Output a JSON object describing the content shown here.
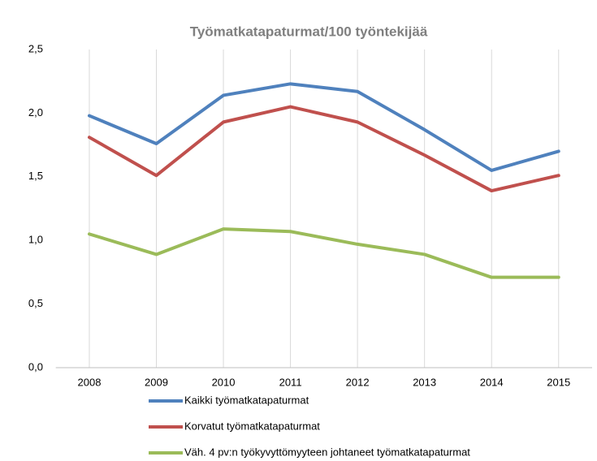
{
  "chart_data": {
    "type": "line",
    "title": "Työmatkatapaturmat/100  työntekijää",
    "categories": [
      "2008",
      "2009",
      "2010",
      "2011",
      "2012",
      "2013",
      "2014",
      "2015"
    ],
    "series": [
      {
        "name": "Kaikki työmatkatapaturmat",
        "color": "#4f81bd",
        "values": [
          1.98,
          1.76,
          2.14,
          2.23,
          2.17,
          1.87,
          1.55,
          1.7
        ]
      },
      {
        "name": "Korvatut työmatkatapaturmat",
        "color": "#c0504d",
        "values": [
          1.81,
          1.51,
          1.93,
          2.05,
          1.93,
          1.67,
          1.39,
          1.51
        ]
      },
      {
        "name": "Väh. 4 pv:n työkyvyttömyyteen johtaneet työmatkatapaturmat",
        "color": "#9bbb59",
        "values": [
          1.05,
          0.89,
          1.09,
          1.07,
          0.97,
          0.89,
          0.71,
          0.71
        ]
      }
    ],
    "ylim": [
      0,
      2.5
    ],
    "yticks": [
      {
        "value": 0,
        "label": "0,0"
      },
      {
        "value": 0.5,
        "label": "0,5"
      },
      {
        "value": 1,
        "label": "1,0"
      },
      {
        "value": 1.5,
        "label": "1,5"
      },
      {
        "value": 2,
        "label": "2,0"
      },
      {
        "value": 2.5,
        "label": "2,5"
      }
    ],
    "grid": "x",
    "legend": "bottom"
  }
}
